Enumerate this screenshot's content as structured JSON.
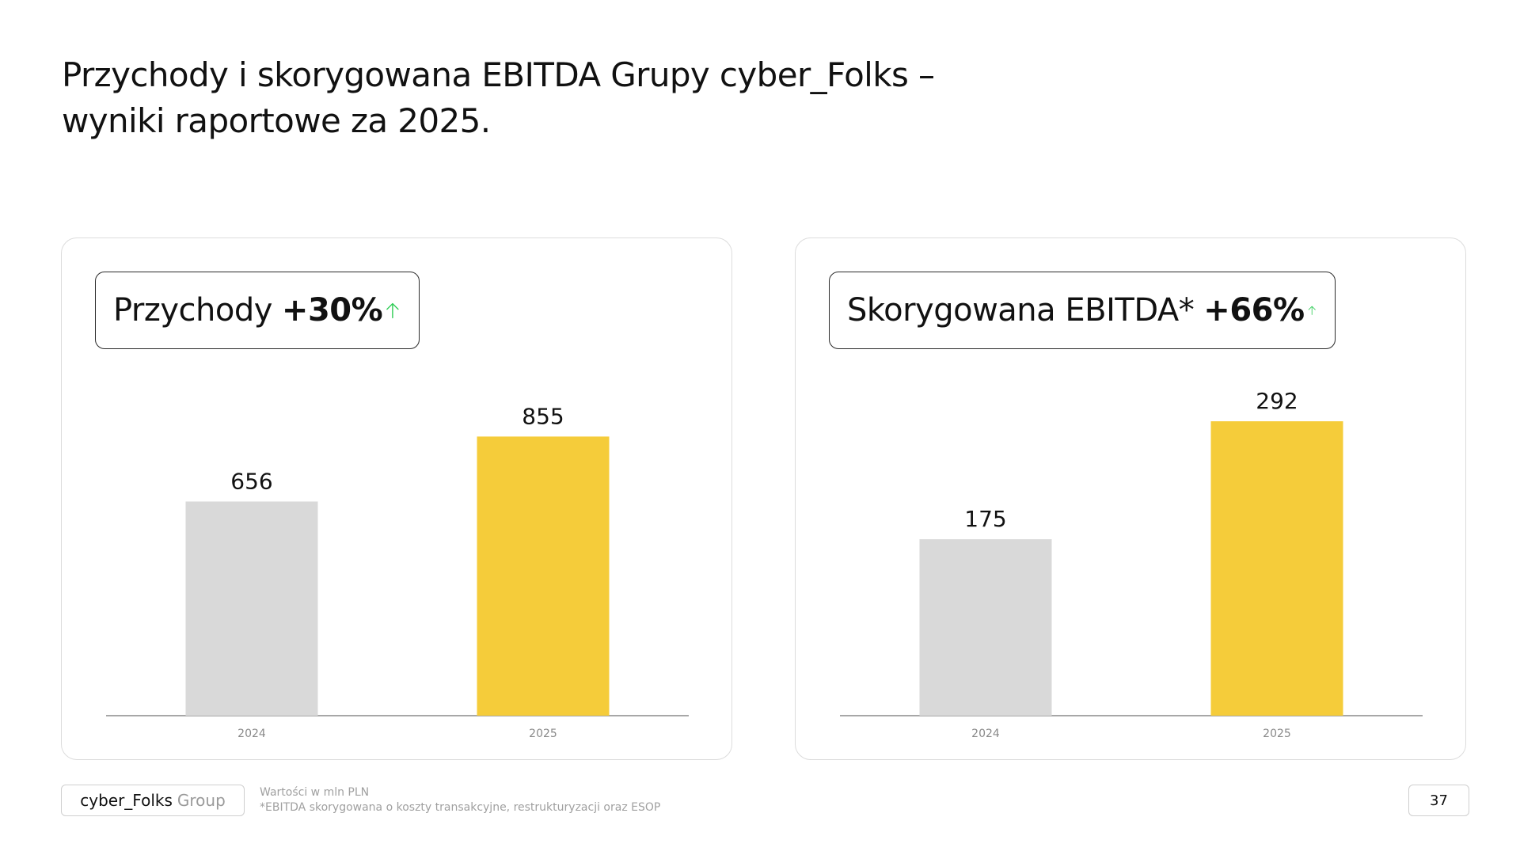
{
  "slide": {
    "title_line1": "Przychody i skorygowana EBITDA Grupy cyber_Folks –",
    "title_line2": "wyniki raportowe za 2025.",
    "page_number": "37"
  },
  "footer": {
    "brand_name": "cyber_Folks",
    "brand_suffix": "Group",
    "note_units": "Wartości w mln PLN",
    "note_ebitda": "*EBITDA skorygowana o koszty transakcyjne, restrukturyzacji oraz ESOP"
  },
  "colors": {
    "bar_2024": "#d9d9d9",
    "bar_2025": "#f5cc3a",
    "arrow_up": "#2ecc55",
    "axis": "#8a8a8a"
  },
  "icons": {
    "change": "arrow-up-icon"
  },
  "chart_data": [
    {
      "type": "bar",
      "title_label": "Przychody",
      "title_change": "+30%",
      "categories": [
        "2024",
        "2025"
      ],
      "values": [
        656,
        855
      ],
      "value_labels": [
        "656",
        "855"
      ],
      "ylim": [
        0,
        1050
      ]
    },
    {
      "type": "bar",
      "title_label": "Skorygowana EBITDA*",
      "title_change": "+66%",
      "categories": [
        "2024",
        "2025"
      ],
      "values": [
        175,
        292
      ],
      "value_labels": [
        "175",
        "292"
      ],
      "ylim": [
        0,
        340
      ]
    }
  ]
}
